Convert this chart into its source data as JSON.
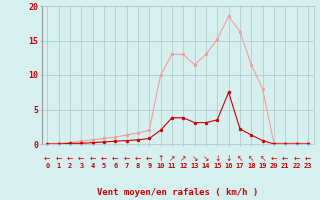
{
  "x": [
    0,
    1,
    2,
    3,
    4,
    5,
    6,
    7,
    8,
    9,
    10,
    11,
    12,
    13,
    14,
    15,
    16,
    17,
    18,
    19,
    20,
    21,
    22,
    23
  ],
  "rafales": [
    0,
    0.1,
    0.2,
    0.4,
    0.6,
    0.8,
    1.0,
    1.3,
    1.6,
    2.0,
    10.0,
    13.0,
    13.0,
    11.5,
    13.0,
    15.2,
    18.5,
    16.3,
    11.5,
    8.0,
    0.1,
    0.1,
    0.1,
    0.1
  ],
  "moyen": [
    0,
    0.0,
    0.1,
    0.1,
    0.2,
    0.3,
    0.4,
    0.5,
    0.6,
    0.8,
    2.0,
    3.8,
    3.8,
    3.1,
    3.1,
    3.5,
    7.5,
    2.2,
    1.3,
    0.5,
    0.0,
    0.0,
    0.0,
    0.0
  ],
  "color_light": "#f0a0a0",
  "color_dark": "#cc0000",
  "bg_color": "#d6f0f0",
  "grid_color": "#aac8c8",
  "xlabel": "Vent moyen/en rafales ( km/h )",
  "ylim": [
    0,
    20
  ],
  "xlim": [
    -0.5,
    23.5
  ],
  "yticks": [
    0,
    5,
    10,
    15,
    20
  ],
  "marker_size": 2.0,
  "line_width": 0.8
}
